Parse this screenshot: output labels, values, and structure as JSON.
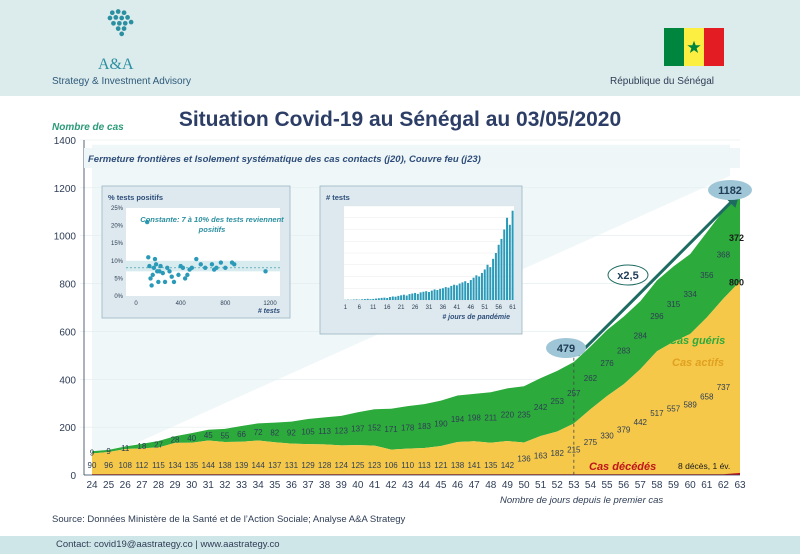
{
  "header": {
    "logo_text": "A&A",
    "logo_sub": "Strategy & Investment Advisory",
    "country": "République du Sénégal",
    "flag_colors": [
      "#00853f",
      "#fdef42",
      "#e31b23"
    ],
    "flag_star_color": "#00853f"
  },
  "title": "Situation Covid-19 au Sénégal au 03/05/2020",
  "footer": {
    "source": "Source: Données Ministère de la Santé et de l’Action Sociale; Analyse A&A Strategy",
    "contact": "Contact: covid19@aastrategy.co | www.aastrategy.co"
  },
  "chart_data": [
    {
      "type": "area",
      "ylabel": "Nombre de cas",
      "xlabel": "Nombre de jours depuis le premier cas",
      "ylim": [
        0,
        1400
      ],
      "yticks": [
        0,
        200,
        400,
        600,
        800,
        1000,
        1200,
        1400
      ],
      "x": [
        24,
        25,
        26,
        27,
        28,
        29,
        30,
        31,
        32,
        33,
        34,
        35,
        36,
        37,
        38,
        39,
        40,
        41,
        42,
        43,
        44,
        45,
        46,
        47,
        48,
        49,
        50,
        51,
        52,
        53,
        54,
        55,
        56,
        57,
        58,
        59,
        60,
        61,
        62,
        63
      ],
      "series": [
        {
          "name": "Cas décédés",
          "color": "#c0141c",
          "values": [
            0,
            0,
            0,
            0,
            0,
            0,
            0,
            0,
            0,
            0,
            0,
            0,
            0,
            0,
            0,
            0,
            0,
            0,
            0,
            0,
            0,
            0,
            0,
            0,
            0,
            0,
            0,
            0,
            0,
            0,
            0,
            0,
            0,
            0,
            0,
            0,
            0,
            0,
            0,
            9
          ]
        },
        {
          "name": "Cas actifs",
          "color": "#f5c84a",
          "values": [
            90,
            96,
            108,
            112,
            115,
            134,
            135,
            144,
            138,
            139,
            144,
            137,
            131,
            129,
            128,
            124,
            125,
            123,
            106,
            110,
            113,
            121,
            138,
            141,
            135,
            142,
            136,
            163,
            182,
            215,
            275,
            330,
            379,
            442,
            517,
            557,
            589,
            658,
            737,
            800
          ]
        },
        {
          "name": "Cas guéris",
          "color": "#2daa3c",
          "values": [
            9,
            9,
            11,
            18,
            27,
            28,
            40,
            45,
            55,
            66,
            72,
            82,
            92,
            105,
            113,
            123,
            137,
            152,
            171,
            178,
            183,
            190,
            194,
            198,
            211,
            220,
            235,
            242,
            253,
            257,
            262,
            276,
            283,
            284,
            296,
            315,
            334,
            356,
            368,
            372
          ]
        }
      ],
      "point_labels": {
        "active_top": "800",
        "recovered_top": "372",
        "deaths_note": "8 décès, 1 év."
      },
      "annotations": {
        "measures": "Fermeture frontières et Isolement systématique des cas contacts (j20), Couvre feu (j23)",
        "total_start": "479",
        "total_end": "1182",
        "growth": "x2,5"
      }
    },
    {
      "type": "scatter",
      "ylabel": "% tests positifs",
      "xticks": [
        "0",
        "400",
        "800",
        "1200"
      ],
      "xlabel": "# tests",
      "yticks": [
        "0%",
        "5%",
        "10%",
        "15%",
        "20%",
        "25%"
      ],
      "annotation": "Constante: 7 à 10% des tests reviennent positifs",
      "x": [
        100,
        110,
        120,
        130,
        140,
        150,
        160,
        170,
        180,
        190,
        200,
        210,
        220,
        240,
        260,
        280,
        300,
        320,
        340,
        380,
        400,
        420,
        440,
        460,
        480,
        500,
        540,
        580,
        620,
        680,
        700,
        720,
        760,
        800,
        860,
        880,
        1160
      ],
      "y": [
        21,
        11,
        8.5,
        5,
        3,
        6,
        8,
        10.5,
        9,
        7,
        4,
        7,
        8.5,
        6.5,
        4,
        8,
        7,
        5.5,
        4,
        6,
        8.5,
        8,
        5,
        6,
        7.5,
        8,
        10.5,
        9,
        8,
        9,
        7.5,
        8,
        9.5,
        8,
        9.5,
        9,
        7
      ]
    },
    {
      "type": "bar",
      "ylabel": "# tests",
      "xlabel": "# jours de pandémie",
      "xticks": [
        "1",
        "6",
        "11",
        "16",
        "21",
        "26",
        "31",
        "36",
        "41",
        "46",
        "51",
        "56",
        "61"
      ],
      "values": [
        2,
        3,
        2,
        4,
        5,
        3,
        6,
        8,
        10,
        7,
        9,
        12,
        15,
        18,
        20,
        17,
        25,
        30,
        28,
        35,
        40,
        45,
        38,
        50,
        55,
        60,
        52,
        65,
        70,
        75,
        68,
        80,
        90,
        85,
        95,
        100,
        110,
        105,
        120,
        130,
        125,
        140,
        150,
        160,
        145,
        170,
        190,
        210,
        200,
        230,
        260,
        300,
        280,
        350,
        400,
        470,
        520,
        600,
        700,
        640,
        760
      ]
    }
  ]
}
